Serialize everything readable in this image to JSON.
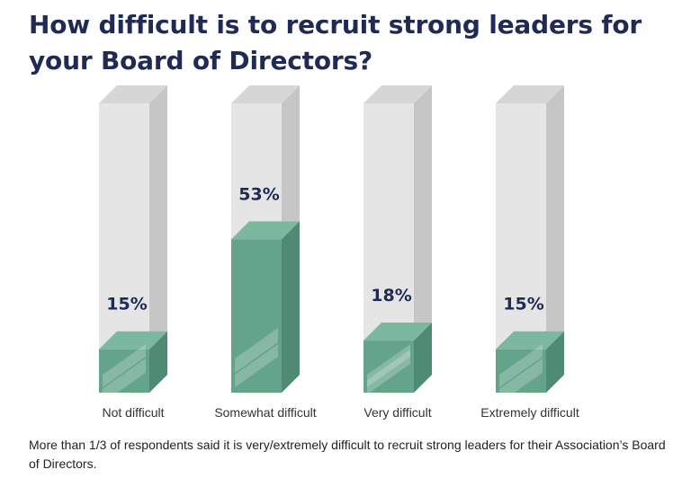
{
  "title": "How difficult is to recruit strong leaders for your Board of Directors?",
  "footnote": "More than 1/3 of respondents said it is very/extremely difficult to recruit strong leaders for their Association’s Board of Directors.",
  "colors": {
    "bar_front": "#64a48a",
    "bar_side": "#4f8a72",
    "bar_top": "#7cb89f",
    "track_front": "#e5e5e5",
    "track_side": "#c6c6c6",
    "track_top": "#d6d6d6",
    "label": "#1f2a55",
    "category": "#333333"
  },
  "chart_data": {
    "type": "bar",
    "title": "How difficult is to recruit strong leaders for your Board of Directors?",
    "categories": [
      "Not difficult",
      "Somewhat difficult",
      "Very difficult",
      "Extremely difficult"
    ],
    "values": [
      15,
      53,
      18,
      15
    ],
    "value_labels": [
      "15%",
      "53%",
      "18%",
      "15%"
    ],
    "unit": "%",
    "ylim": [
      0,
      100
    ],
    "xlabel": "",
    "ylabel": "",
    "grid": false,
    "legend": "none"
  }
}
